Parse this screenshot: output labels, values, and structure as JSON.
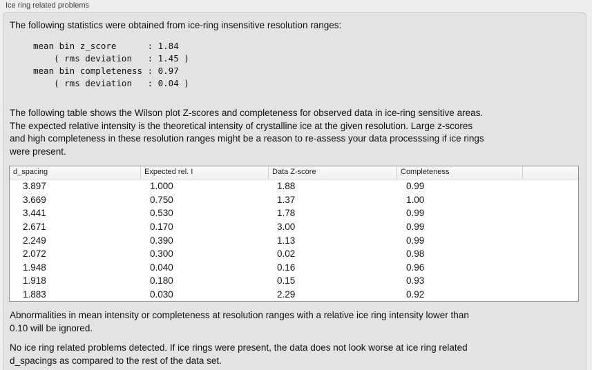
{
  "window": {
    "group_label": "Ice ring related problems"
  },
  "intro": "The following statistics were obtained from ice-ring insensitive resolution ranges:",
  "stats": {
    "mean_bin_z_score": "1.84",
    "rms_deviation_z_score": "1.45",
    "mean_bin_completeness": "0.97",
    "rms_deviation_completeness": "0.04",
    "block": "mean bin z_score      : 1.84\n    ( rms deviation   : 1.45 )\nmean bin completeness : 0.97\n    ( rms deviation   : 0.04 )"
  },
  "table_description": "The following table shows the Wilson plot Z-scores and completeness for observed data in ice-ring sensitive areas.\nThe expected relative intensity is the theoretical intensity of crystalline ice at the given resolution. Large z-scores\nand high completeness in these resolution ranges might be a reason to re-assess your data processsing if ice rings\nwere present.",
  "table": {
    "columns": [
      "d_spacing",
      "Expected rel. I",
      "Data Z-score",
      "Completeness",
      ""
    ],
    "rows": [
      [
        "3.897",
        "1.000",
        "1.88",
        "0.99"
      ],
      [
        "3.669",
        "0.750",
        "1.37",
        "1.00"
      ],
      [
        "3.441",
        "0.530",
        "1.78",
        "0.99"
      ],
      [
        "2.671",
        "0.170",
        "3.00",
        "0.99"
      ],
      [
        "2.249",
        "0.390",
        "1.13",
        "0.99"
      ],
      [
        "2.072",
        "0.300",
        "0.02",
        "0.98"
      ],
      [
        "1.948",
        "0.040",
        "0.16",
        "0.96"
      ],
      [
        "1.918",
        "0.180",
        "0.15",
        "0.93"
      ],
      [
        "1.883",
        "0.030",
        "2.29",
        "0.92"
      ]
    ]
  },
  "footnote": "Abnormalities in mean intensity or completeness at resolution ranges with a relative ice ring intensity lower than\n0.10 will be ignored.",
  "conclusion": "No ice ring related problems detected. If ice rings were present, the data does not look worse at ice ring related\nd_spacings as compared to the rest of the data set.",
  "colors": {
    "outer_background": "#eeeeee",
    "panel_background": "#e3e3e3",
    "panel_border": "#c6c6c6",
    "table_border": "#8f8f8f",
    "table_header_background": "#f4f4f4",
    "text": "#141414"
  }
}
